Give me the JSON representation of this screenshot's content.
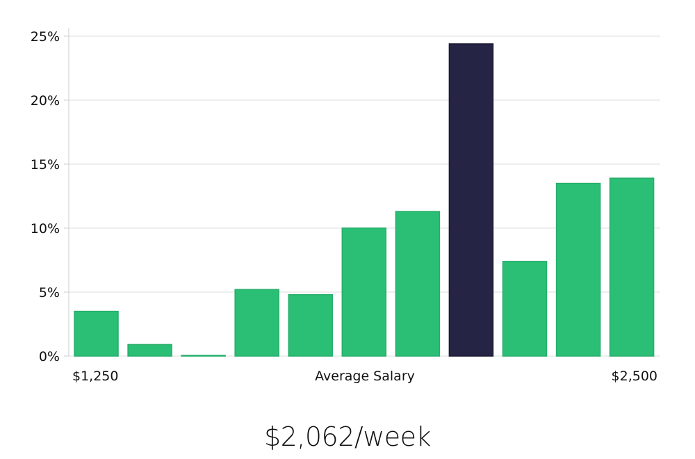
{
  "chart_data": {
    "type": "bar",
    "title": "",
    "xlabel": "Average Salary",
    "ylabel": "",
    "x_range_labels": [
      "$1,250",
      "$2,500"
    ],
    "ylim": [
      0,
      25
    ],
    "y_ticks": [
      0,
      5,
      10,
      15,
      20,
      25
    ],
    "y_tick_labels": [
      "0%",
      "5%",
      "10%",
      "15%",
      "20%",
      "25%"
    ],
    "values": [
      3.5,
      0.9,
      0.05,
      5.2,
      4.8,
      10.0,
      11.3,
      24.4,
      7.4,
      13.5,
      13.9
    ],
    "highlight_index": 7,
    "grid": true
  },
  "colors": {
    "bar": "#2bbf76",
    "bar_stroke": "#27ad6b",
    "highlight": "#262444",
    "grid": "#dddddd",
    "axis": "#cccccc"
  },
  "headline": "$2,062/week"
}
